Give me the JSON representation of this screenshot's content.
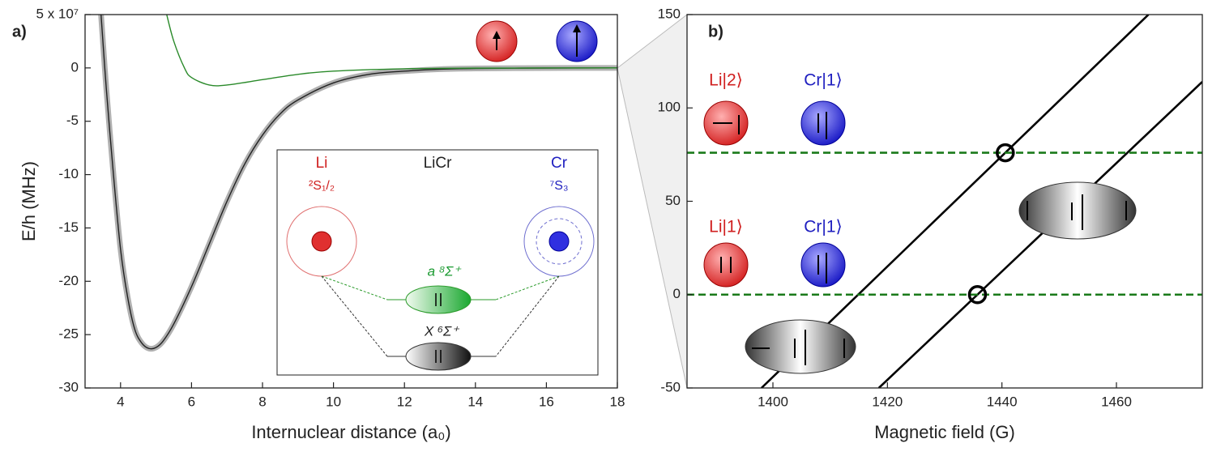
{
  "chart_data": [
    {
      "type": "line",
      "panel": "a)",
      "xlabel": "Internuclear distance (a₀)",
      "ylabel": "E/h (MHz)",
      "xlim": [
        3,
        18
      ],
      "xticks": [
        4,
        6,
        8,
        10,
        12,
        14,
        16,
        18
      ],
      "ylim": [
        -30,
        5
      ],
      "yticks": [
        -30,
        -25,
        -20,
        -15,
        -10,
        -5,
        0,
        {
          "value": 5,
          "label": "5 x 10⁷"
        }
      ],
      "series": [
        {
          "color": "#222222",
          "band": "#b0b0b0",
          "x": [
            3.45,
            3.6,
            3.8,
            4.0,
            4.2,
            4.4,
            4.6,
            4.8,
            5.0,
            5.2,
            5.5,
            6.0,
            6.5,
            7.0,
            7.5,
            8.0,
            8.5,
            9.0,
            10.0,
            11.0,
            12.0,
            13.0,
            14.0,
            16.0,
            18.0
          ],
          "values": [
            5,
            -2,
            -10,
            -17,
            -21.5,
            -24.5,
            -25.8,
            -26.3,
            -26.2,
            -25.6,
            -24,
            -20.5,
            -16.5,
            -12.5,
            -9,
            -6.3,
            -4.3,
            -3,
            -1.4,
            -0.6,
            -0.3,
            -0.12,
            -0.05,
            -0.01,
            0
          ]
        },
        {
          "color": "#2a8a2a",
          "x": [
            5.3,
            5.5,
            5.8,
            6.0,
            6.5,
            7.0,
            8.0,
            9.0,
            10.0,
            12.0,
            14.0,
            18.0
          ],
          "values": [
            5,
            2.5,
            0,
            -0.9,
            -1.6,
            -1.6,
            -1.1,
            -0.6,
            -0.3,
            -0.08,
            -0.02,
            0
          ]
        }
      ],
      "annotations": [
        "Li",
        "²S₁/₂",
        "LiCr",
        "Cr",
        "⁷S₃",
        "a ⁸Σ⁺",
        "X ⁶Σ⁺"
      ]
    },
    {
      "type": "line",
      "panel": "b)",
      "xlabel": "Magnetic field (G)",
      "xlim": [
        1385,
        1475
      ],
      "xticks": [
        1400,
        1420,
        1440,
        1460
      ],
      "ylim": [
        -50,
        150
      ],
      "yticks": [
        -50,
        0,
        50,
        100,
        150
      ],
      "series": [
        {
          "color": "#000000",
          "x": [
            1398,
            1465.6
          ],
          "values": [
            -50,
            150
          ]
        },
        {
          "color": "#000000",
          "x": [
            1418.5,
            1475
          ],
          "values": [
            -50,
            114
          ]
        },
        {
          "color": "#1a7a1a",
          "dash": true,
          "x": [
            1385,
            1475
          ],
          "values": [
            0,
            0
          ]
        },
        {
          "color": "#1a7a1a",
          "dash": true,
          "x": [
            1385,
            1475
          ],
          "values": [
            76,
            76
          ]
        }
      ],
      "annotations": [
        "Li|2⟩",
        "Cr|1⟩",
        "Li|1⟩",
        "Cr|1⟩"
      ]
    }
  ]
}
